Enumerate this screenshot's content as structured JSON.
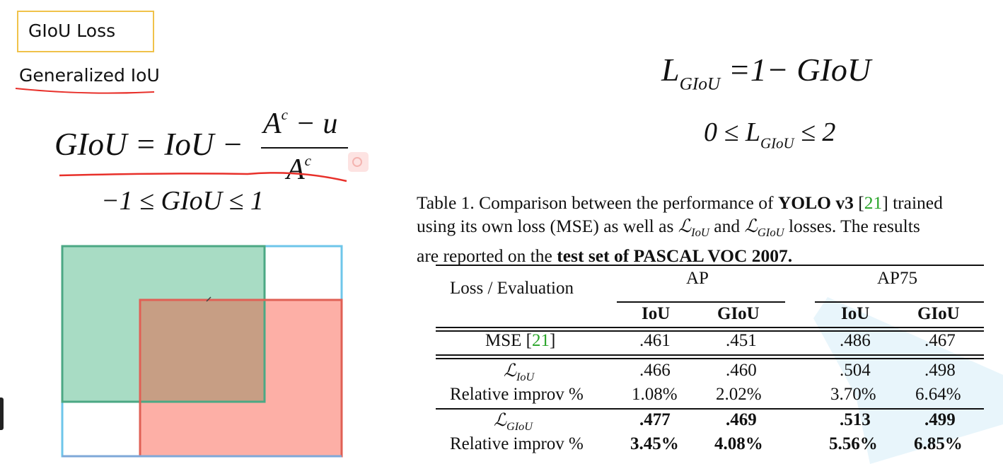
{
  "title": "GIoU Loss",
  "subtitle": "Generalized IoU",
  "equations": {
    "giou_lhs": "GIoU = IoU −",
    "frac_num_base": "A",
    "frac_num_sup": "c",
    "frac_num_rest": " − u",
    "frac_den_base": "A",
    "frac_den_sup": "c",
    "giou_range": "−1 ≤ GIoU ≤ 1",
    "loss_lhs": "L",
    "loss_sub": "GIoU",
    "loss_rhs": " =1− GIoU",
    "loss_range_left": "0 ≤ L",
    "loss_range_sub": "GIoU",
    "loss_range_right": " ≤ 2"
  },
  "caption": {
    "part1": "Table 1. Comparison between the performance of ",
    "bold1": "YOLO v3",
    "bracket_open": " [",
    "cite": "21",
    "part2": "] trained",
    "line2a": "using its own loss (MSE) as well as ",
    "l_iou": "ℒ",
    "l_iou_sub": "IoU",
    "line2b": " and ",
    "l_giou": "ℒ",
    "l_giou_sub": "GIoU",
    "line2c": " losses. The results",
    "line3a": "are reported on the ",
    "bold2": "test set of PASCAL VOC 2007."
  },
  "table": {
    "header_loss": "Loss / Evaluation",
    "group_ap": "AP",
    "group_ap75": "AP75",
    "sub_headers": [
      "IoU",
      "GIoU",
      "IoU",
      "GIoU"
    ],
    "mse_label": "MSE [",
    "mse_cite": "21",
    "mse_close": "]",
    "mse_values": [
      ".461",
      ".451",
      ".486",
      ".467"
    ],
    "liou_label": "ℒ",
    "liou_sub": "IoU",
    "liou_values": [
      ".466",
      ".460",
      ".504",
      ".498"
    ],
    "liou_rel_label": "Relative improv %",
    "liou_rel_values": [
      "1.08%",
      "2.02%",
      "3.70%",
      "6.64%"
    ],
    "lgiou_label": "ℒ",
    "lgiou_sub": "GIoU",
    "lgiou_values": [
      ".477",
      ".469",
      ".513",
      ".499"
    ],
    "lgiou_rel_label": "Relative improv %",
    "lgiou_rel_values": [
      "3.45%",
      "4.08%",
      "5.56%",
      "6.85%"
    ]
  },
  "colors": {
    "green_box": "#a8dcc4",
    "red_box": "#fdafa6",
    "overlap": "#c79e84",
    "enclosing": "#6ec6ea",
    "accent_red": "#e8302a",
    "title_border": "#f0c24a",
    "cite_green": "#2aa52a"
  }
}
